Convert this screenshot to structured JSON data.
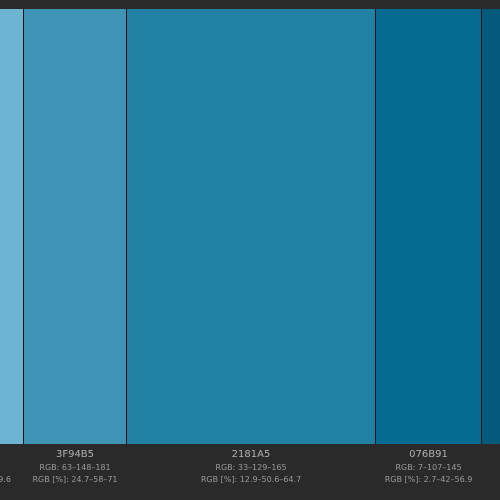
{
  "swatches": [
    {
      "color": "#6db4d2",
      "rgb_pct": "9.6"
    },
    {
      "color": "#3f94b5",
      "hex": "3F94B5",
      "rgb": "RGB: 63–148–181",
      "rgb_pct": "RGB [%]: 24.7–58–71"
    },
    {
      "color": "#2181a5",
      "hex": "2181A5",
      "rgb": "RGB: 33–129–165",
      "rgb_pct": "RGB [%]: 12.9–50.6–64.7"
    },
    {
      "color": "#076b91",
      "hex": "076B91",
      "rgb": "RGB: 7–107–145",
      "rgb_pct": "RGB [%]: 2.7–42–56.9"
    },
    {
      "color": "#055a7b"
    }
  ]
}
